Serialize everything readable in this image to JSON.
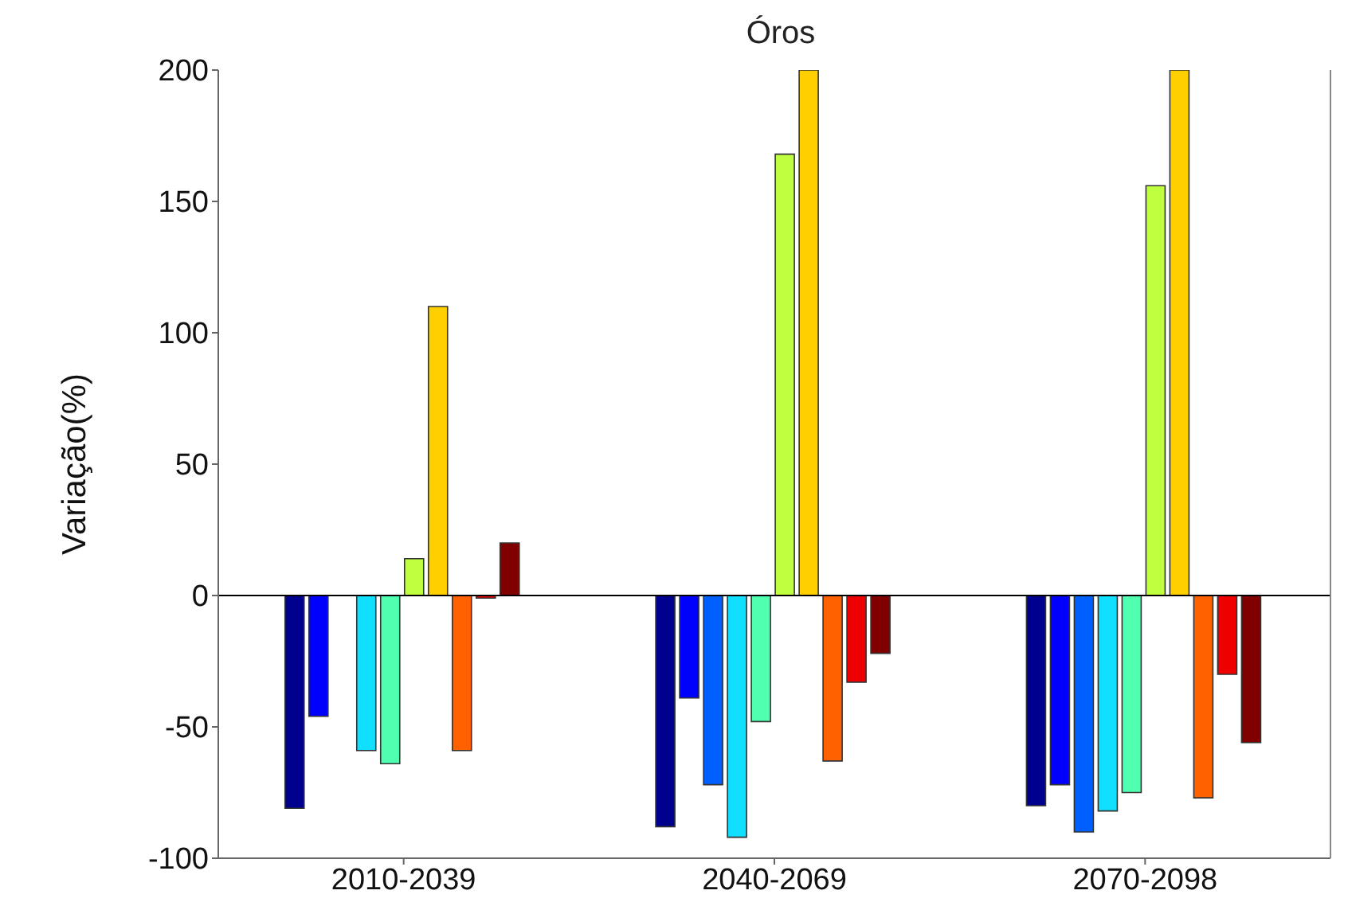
{
  "chart_data": {
    "type": "bar",
    "title": "Óros",
    "ylabel": "Variação(%)",
    "categories": [
      "2010-2039",
      "2040-2069",
      "2070-2098"
    ],
    "series": [
      {
        "color": "#00008f",
        "values": [
          -81,
          -88,
          -80
        ]
      },
      {
        "color": "#0000ff",
        "values": [
          -46,
          -39,
          -72
        ]
      },
      {
        "color": "#0060ff",
        "values": [
          0,
          -72,
          -90
        ]
      },
      {
        "color": "#10dfff",
        "values": [
          -59,
          -92,
          -82
        ]
      },
      {
        "color": "#50ffaf",
        "values": [
          -64,
          -48,
          -75
        ]
      },
      {
        "color": "#bfff40",
        "values": [
          14,
          168,
          156
        ]
      },
      {
        "color": "#ffcf00",
        "values": [
          110,
          200,
          200
        ]
      },
      {
        "color": "#ff6000",
        "values": [
          -59,
          -63,
          -77
        ]
      },
      {
        "color": "#ef0000",
        "values": [
          -1,
          -33,
          -30
        ]
      },
      {
        "color": "#800000",
        "values": [
          20,
          -22,
          -56
        ]
      }
    ],
    "ylim": [
      -100,
      200
    ],
    "yticks": [
      -100,
      -50,
      0,
      50,
      100,
      150,
      200
    ],
    "ref_lines": [
      {
        "axis": "y",
        "value": 0,
        "color": "#000000"
      }
    ],
    "grid": false,
    "legend": false
  }
}
